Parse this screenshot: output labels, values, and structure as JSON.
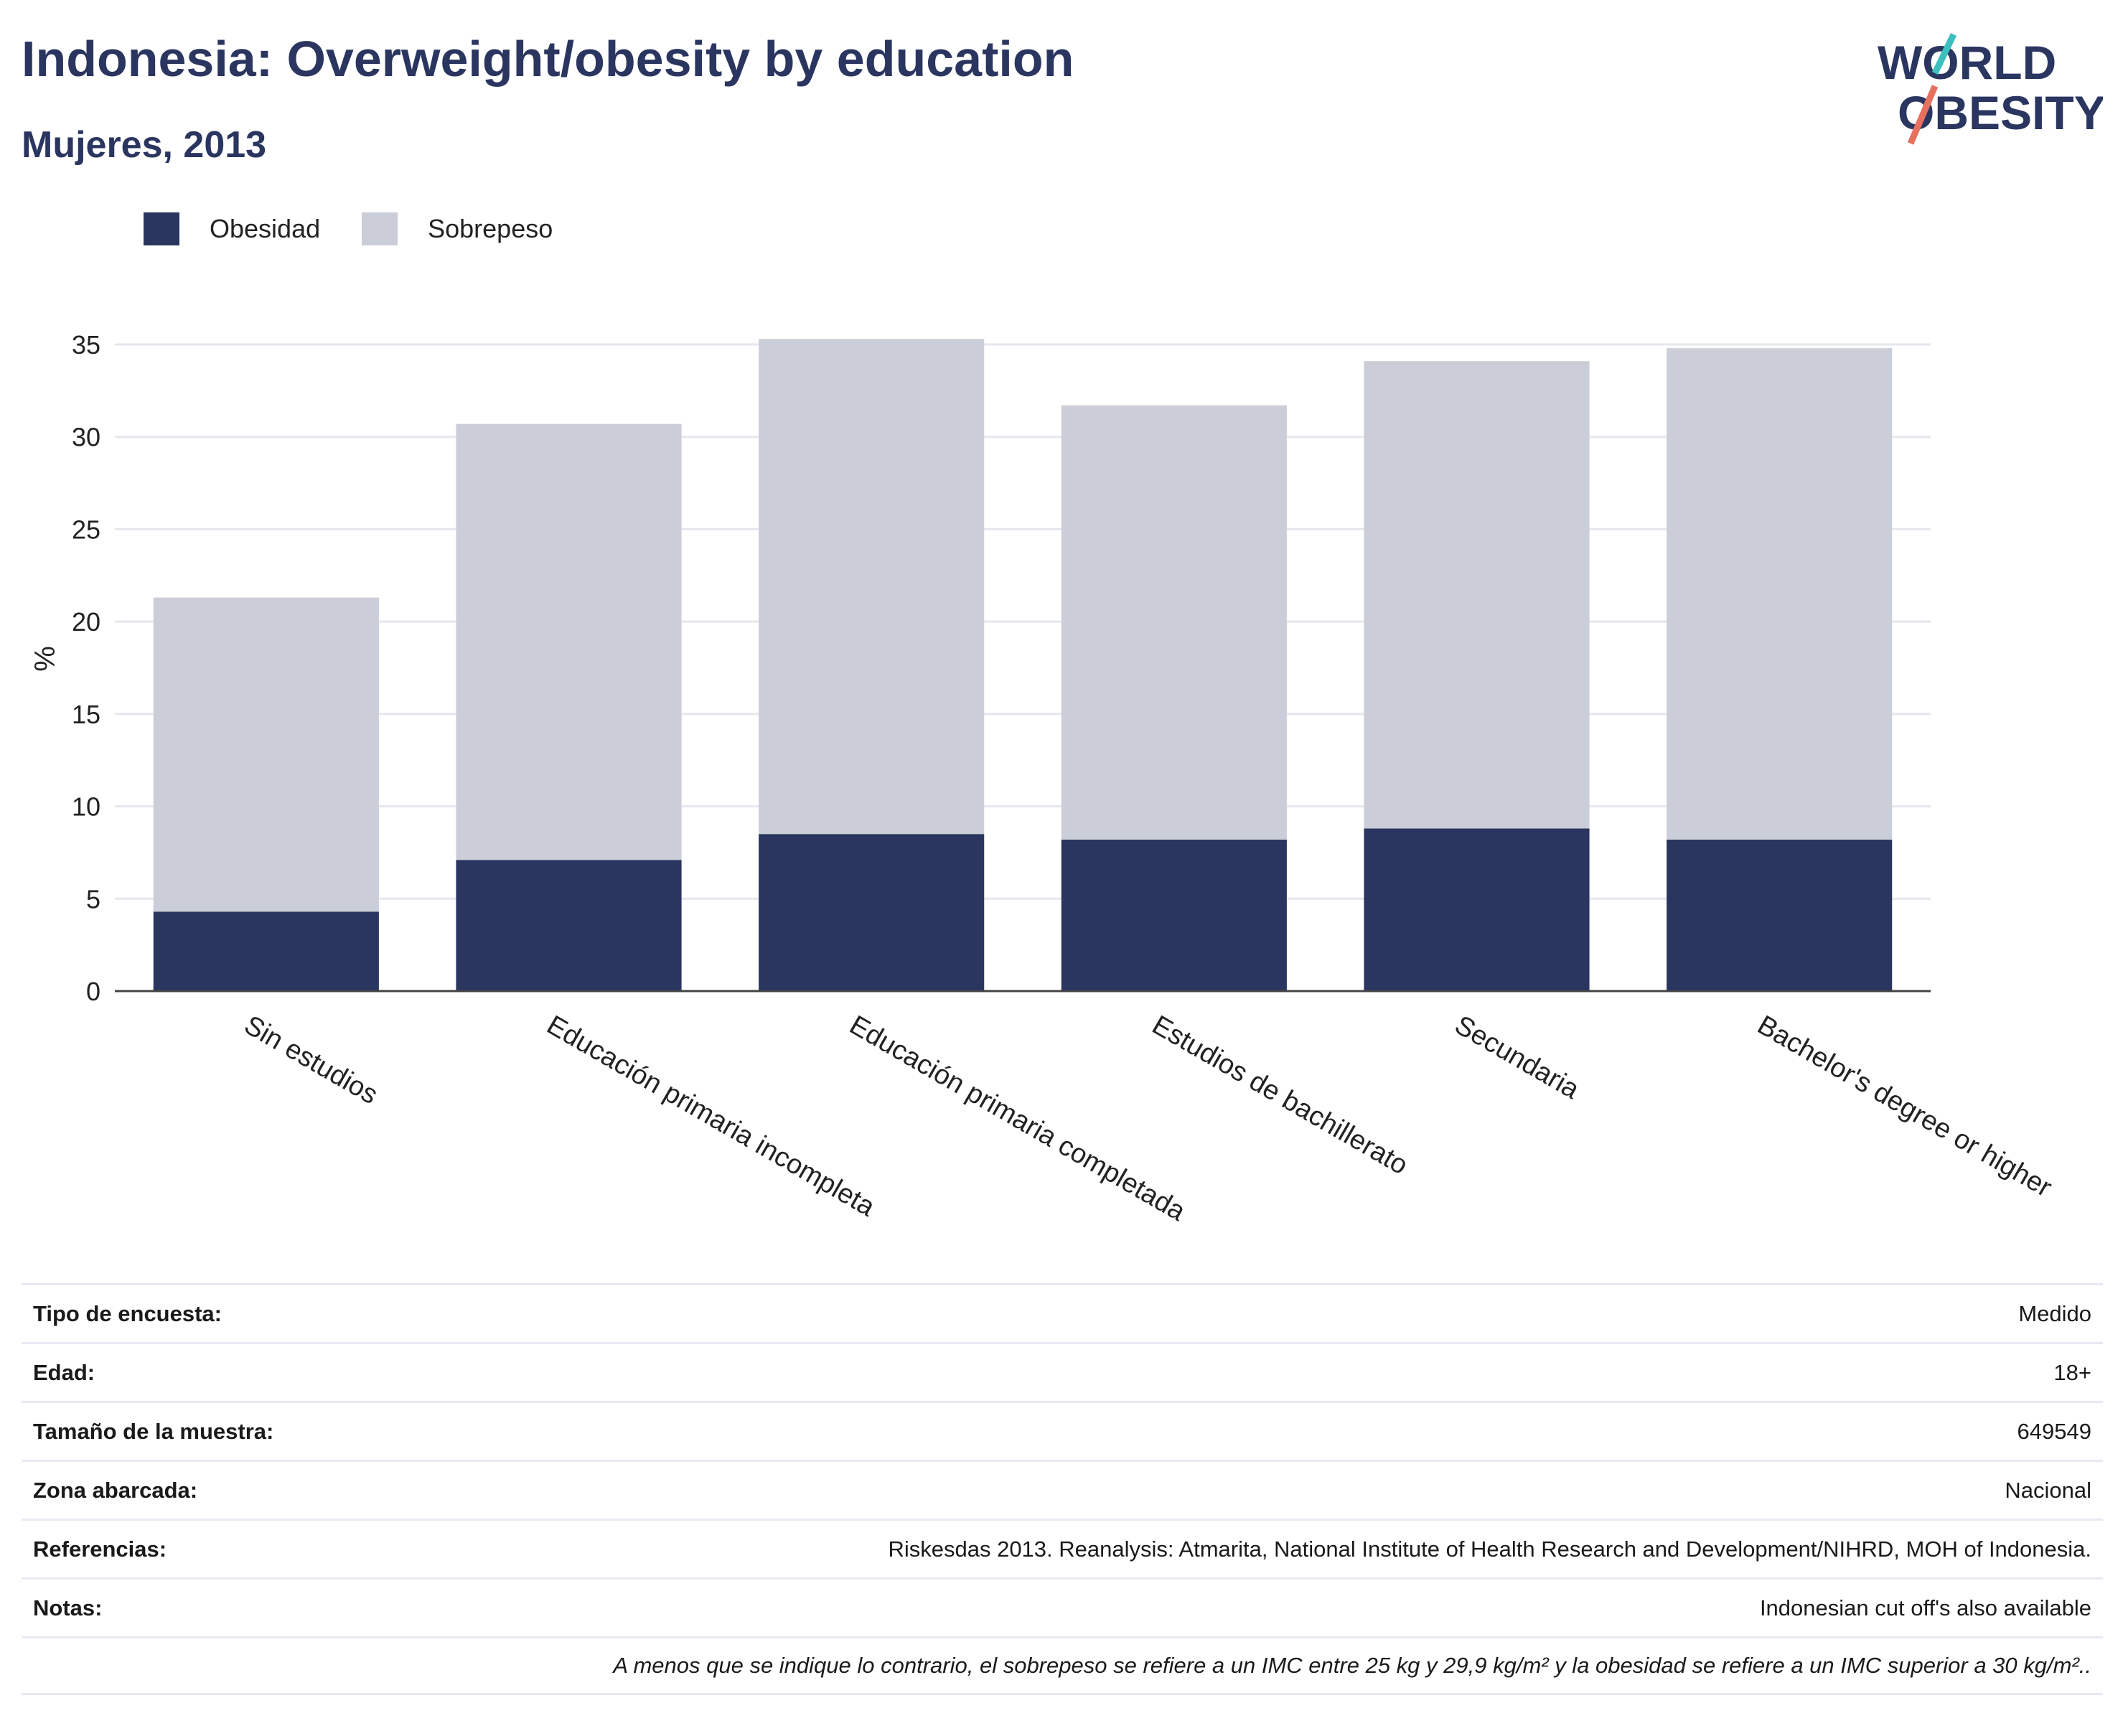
{
  "header": {
    "title": "Indonesia: Overweight/obesity by education",
    "subtitle": "Mujeres, 2013",
    "logo_line1": "WORLD",
    "logo_line2": "OBESITY"
  },
  "legend": [
    {
      "label": "Obesidad",
      "color": "#2a3560"
    },
    {
      "label": "Sobrepeso",
      "color": "#cbcdd8"
    }
  ],
  "chart_data": {
    "type": "bar",
    "stacked": true,
    "categories": [
      "Sin estudios",
      "Educación primaria incompleta",
      "Educación primaria completada",
      "Estudios de bachillerato",
      "Secundaria",
      "Bachelor's degree or higher"
    ],
    "series": [
      {
        "name": "Obesidad",
        "color": "#2a3560",
        "values": [
          4.3,
          7.1,
          8.5,
          8.2,
          8.8,
          8.2
        ]
      },
      {
        "name": "Sobrepeso",
        "color": "#cbcdd8",
        "values": [
          17.0,
          23.6,
          26.8,
          23.5,
          25.3,
          26.6
        ]
      }
    ],
    "ylabel": "%",
    "ylim": [
      0,
      35
    ],
    "yticks": [
      0,
      5,
      10,
      15,
      20,
      25,
      30,
      35
    ],
    "grid": true,
    "legend_position": "top-left"
  },
  "info_table": [
    {
      "label": "Tipo de encuesta:",
      "value": "Medido"
    },
    {
      "label": "Edad:",
      "value": "18+"
    },
    {
      "label": "Tamaño de la muestra:",
      "value": "649549"
    },
    {
      "label": "Zona abarcada:",
      "value": "Nacional"
    },
    {
      "label": "Referencias:",
      "value": "Riskesdas 2013. Reanalysis: Atmarita, National Institute of Health Research and Development/NIHRD, MOH of Indonesia."
    },
    {
      "label": "Notas:",
      "value": "Indonesian cut off's also available"
    }
  ],
  "footnote": "A menos que se indique lo contrario, el sobrepeso se refiere a un IMC entre 25 kg y 29,9 kg/m² y la obesidad se refiere a un IMC superior a 30 kg/m²..",
  "colors": {
    "brand_navy": "#2a3560",
    "logo_teal": "#3bbfbf",
    "logo_coral": "#e8705f"
  }
}
